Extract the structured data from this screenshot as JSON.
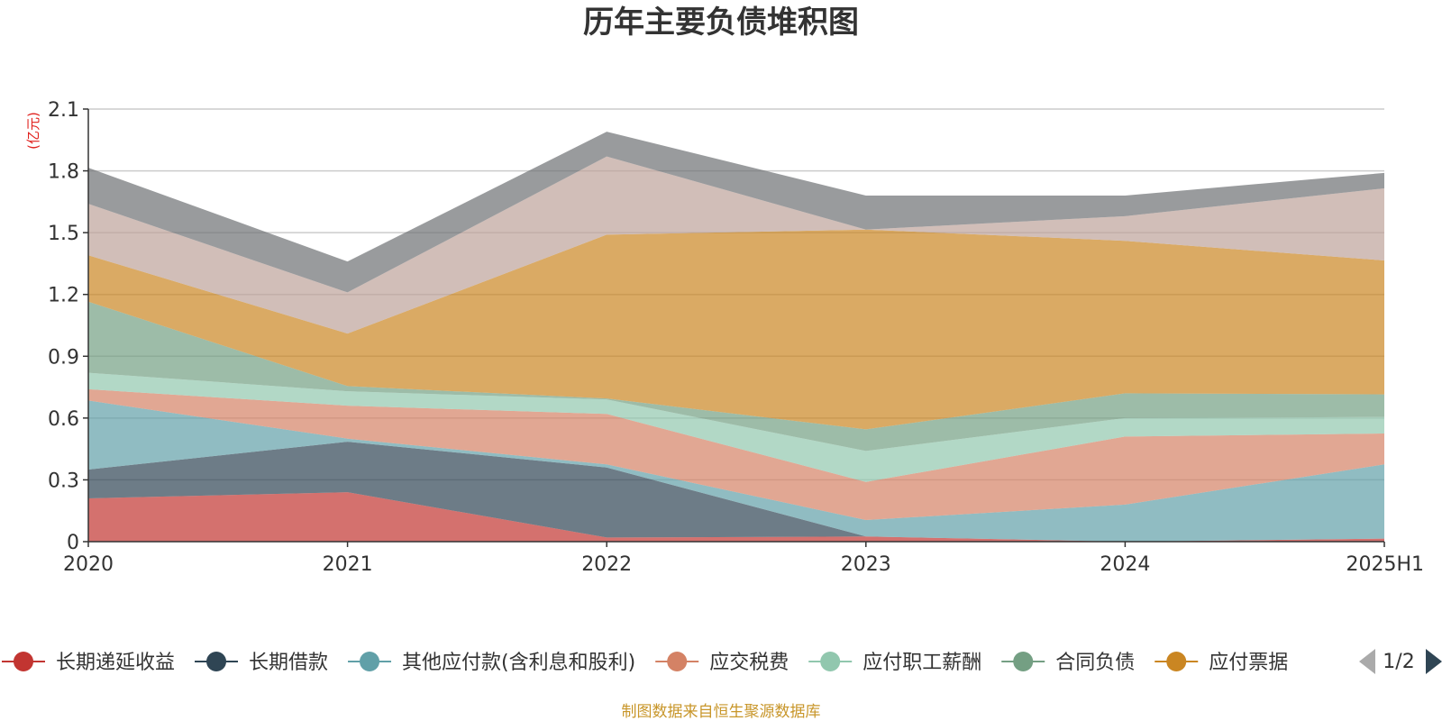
{
  "chart_data": {
    "type": "area",
    "title": "历年主要负债堆积图",
    "unit_label": "(亿元)",
    "categories": [
      "2020",
      "2021",
      "2022",
      "2023",
      "2024",
      "2025H1"
    ],
    "ylim": [
      0,
      2.1
    ],
    "yticks": [
      "0",
      "0.3",
      "0.6",
      "0.9",
      "1.2",
      "1.5",
      "1.8",
      "2.1"
    ],
    "grid": true,
    "stacked": true,
    "series": [
      {
        "name": "长期递延收益",
        "color": "#c23531",
        "values": [
          0.21,
          0.24,
          0.02,
          0.025,
          0.0,
          0.015
        ]
      },
      {
        "name": "长期借款",
        "color": "#2f4554",
        "values": [
          0.14,
          0.245,
          0.34,
          0.0,
          0.0,
          0.0
        ]
      },
      {
        "name": "其他应付款(含利息和股利)",
        "color": "#61a0a8",
        "values": [
          0.335,
          0.015,
          0.015,
          0.08,
          0.18,
          0.36
        ]
      },
      {
        "name": "应交税费",
        "color": "#d48265",
        "values": [
          0.055,
          0.16,
          0.245,
          0.185,
          0.33,
          0.15
        ]
      },
      {
        "name": "应付职工薪酬",
        "color": "#91c7ae",
        "values": [
          0.08,
          0.07,
          0.07,
          0.15,
          0.09,
          0.08
        ]
      },
      {
        "name": "合同负债",
        "color": "#749f83",
        "values": [
          0.345,
          0.025,
          0.005,
          0.105,
          0.12,
          0.11
        ]
      },
      {
        "name": "应付票据",
        "color": "#ca8622",
        "values": [
          0.225,
          0.255,
          0.795,
          0.97,
          0.74,
          0.65
        ]
      },
      {
        "name": "",
        "color": "#bda29a",
        "values": [
          0.25,
          0.2,
          0.38,
          0.0,
          0.12,
          0.35
        ]
      },
      {
        "name": "",
        "color": "#6e7074",
        "values": [
          0.175,
          0.15,
          0.12,
          0.165,
          0.1,
          0.075
        ]
      }
    ]
  },
  "legend": {
    "items": [
      {
        "label": "长期递延收益",
        "color": "#c23531"
      },
      {
        "label": "长期借款",
        "color": "#2f4554"
      },
      {
        "label": "其他应付款(含利息和股利)",
        "color": "#61a0a8"
      },
      {
        "label": "应交税费",
        "color": "#d48265"
      },
      {
        "label": "应付职工薪酬",
        "color": "#91c7ae"
      },
      {
        "label": "合同负债",
        "color": "#749f83"
      },
      {
        "label": "应付票据",
        "color": "#ca8622"
      }
    ],
    "page_indicator": "1/2"
  },
  "footer": {
    "source": "制图数据来自恒生聚源数据库"
  }
}
